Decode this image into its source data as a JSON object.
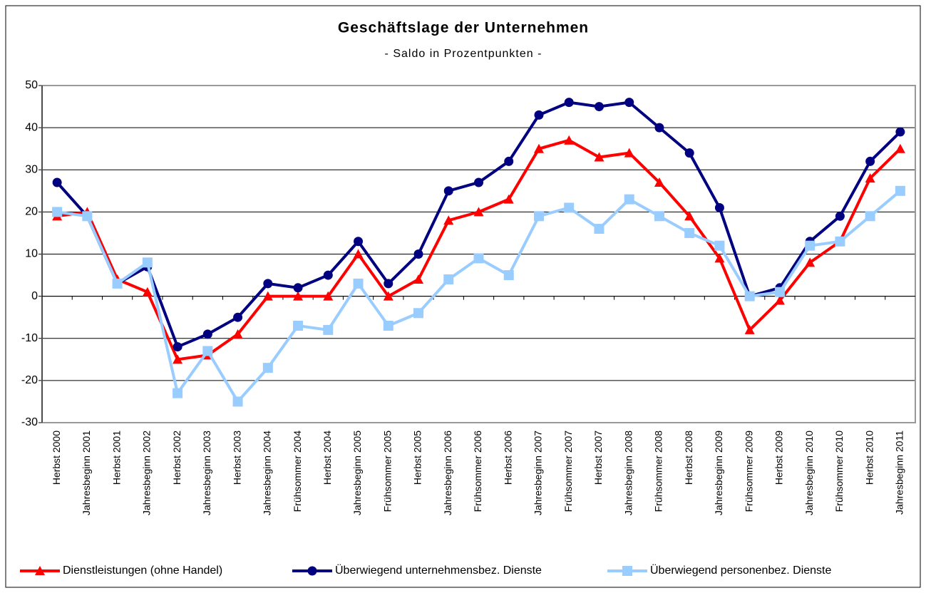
{
  "chart_data": {
    "type": "line",
    "title": "Geschäftslage der Unternehmen",
    "subtitle": "- Saldo in Prozentpunkten -",
    "categories": [
      "Herbst 2000",
      "Jahresbeginn 2001",
      "Herbst 2001",
      "Jahresbeginn 2002",
      "Herbst 2002",
      "Jahresbeginn 2003",
      "Herbst 2003",
      "Jahresbeginn 2004",
      "Frühsommer 2004",
      "Herbst 2004",
      "Jahresbeginn 2005",
      "Frühsommer 2005",
      "Herbst 2005",
      "Jahresbeginn 2006",
      "Frühsommer 2006",
      "Herbst 2006",
      "Jahresbeginn 2007",
      "Frühsommer 2007",
      "Herbst 2007",
      "Jahresbeginn 2008",
      "Frühsommer 2008",
      "Herbst 2008",
      "Jahresbeginn 2009",
      "Frühsommer 2009",
      "Herbst 2009",
      "Jahresbeginn 2010",
      "Frühsommer 2010",
      "Herbst 2010",
      "Jahresbeginn 2011"
    ],
    "series": [
      {
        "name": "Dienstleistungen (ohne Handel)",
        "color": "#ff0000",
        "marker": "triangle",
        "values": [
          19,
          20,
          4,
          1,
          -15,
          -14,
          -9,
          0,
          0,
          0,
          10,
          0,
          4,
          18,
          20,
          23,
          35,
          37,
          33,
          34,
          27,
          19,
          9,
          -8,
          -1,
          8,
          13,
          28,
          35
        ]
      },
      {
        "name": "Überwiegend unternehmensbez. Dienste",
        "color": "#000080",
        "marker": "circle",
        "values": [
          27,
          19,
          3,
          7,
          -12,
          -9,
          -5,
          3,
          2,
          5,
          13,
          3,
          10,
          25,
          27,
          32,
          43,
          46,
          45,
          46,
          40,
          34,
          21,
          0,
          2,
          13,
          19,
          32,
          39
        ]
      },
      {
        "name": "Überwiegend personenbez. Dienste",
        "color": "#99ccff",
        "marker": "square",
        "values": [
          20,
          19,
          3,
          8,
          -23,
          -13,
          -25,
          -17,
          -7,
          -8,
          3,
          -7,
          -4,
          4,
          9,
          5,
          19,
          21,
          16,
          23,
          19,
          15,
          12,
          0,
          1,
          12,
          13,
          19,
          25
        ]
      }
    ],
    "ylim": [
      -30,
      50
    ],
    "yticks": [
      -30,
      -20,
      -10,
      0,
      10,
      20,
      30,
      40,
      50
    ],
    "grid": true
  }
}
